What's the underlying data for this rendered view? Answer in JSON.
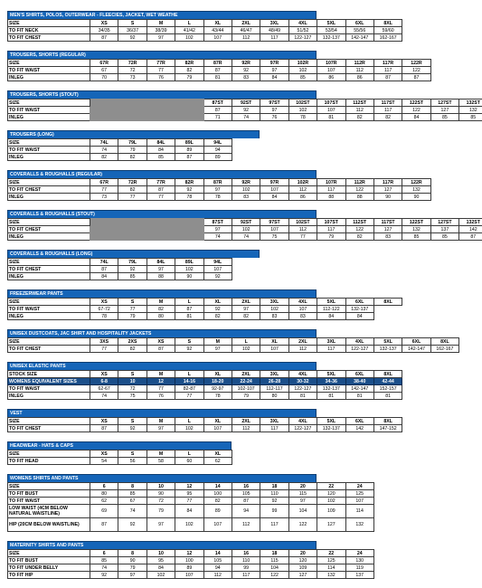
{
  "sections": [
    {
      "title": "MEN'S SHIRTS, POLOS, OUTERWEAR - FLEECIES, JACKET, WET WEATHE",
      "title_cols": 8,
      "grey_cols": 0,
      "rows": [
        {
          "label": "SIZE",
          "head": true,
          "cells": [
            "XS",
            "S",
            "M",
            "L",
            "XL",
            "2XL",
            "3XL",
            "4XL",
            "5XL",
            "6XL",
            "8XL"
          ]
        },
        {
          "label": "TO FIT NECK",
          "cells": [
            "34/35",
            "36/37",
            "38/39",
            "41/42",
            "43/44",
            "46/47",
            "48/49",
            "51/52",
            "53/54",
            "55/56",
            "59/60"
          ]
        },
        {
          "label": "TO FIT CHEST",
          "cells": [
            "87",
            "92",
            "97",
            "102",
            "107",
            "112",
            "117",
            "122-127",
            "132-137",
            "142-147",
            "162-167"
          ]
        }
      ]
    },
    {
      "title": "TROUSERS, SHORTS (REGULAR)",
      "title_cols": 8,
      "grey_cols": 0,
      "rows": [
        {
          "label": "SIZE",
          "head": true,
          "cells": [
            "67R",
            "72R",
            "77R",
            "82R",
            "87R",
            "92R",
            "97R",
            "102R",
            "107R",
            "112R",
            "117R",
            "122R"
          ]
        },
        {
          "label": "TO FIT WAIST",
          "cells": [
            "67",
            "72",
            "77",
            "82",
            "87",
            "92",
            "97",
            "102",
            "107",
            "112",
            "117",
            "122"
          ]
        },
        {
          "label": "INLEG",
          "cells": [
            "70",
            "73",
            "76",
            "79",
            "81",
            "83",
            "84",
            "85",
            "86",
            "86",
            "87",
            "87"
          ]
        }
      ]
    },
    {
      "title": "TROUSERS, SHORTS (STOUT)",
      "title_cols": 8,
      "grey_cols": 4,
      "rows": [
        {
          "label": "SIZE",
          "head": true,
          "cells": [
            "87ST",
            "92ST",
            "97ST",
            "102ST",
            "107ST",
            "112ST",
            "117ST",
            "122ST",
            "127ST",
            "132ST"
          ]
        },
        {
          "label": "TO FIT WAIST",
          "cells": [
            "87",
            "92",
            "97",
            "102",
            "107",
            "112",
            "117",
            "122",
            "127",
            "132"
          ]
        },
        {
          "label": "INLEG",
          "cells": [
            "71",
            "74",
            "76",
            "78",
            "81",
            "82",
            "82",
            "84",
            "85",
            "85"
          ]
        }
      ]
    },
    {
      "title": "TROUSERS (LONG)",
      "title_cols": 6,
      "grey_cols": 0,
      "rows": [
        {
          "label": "SIZE",
          "head": true,
          "cells": [
            "74L",
            "79L",
            "84L",
            "89L",
            "94L"
          ]
        },
        {
          "label": "TO FIT WAIST",
          "cells": [
            "74",
            "79",
            "84",
            "89",
            "94"
          ]
        },
        {
          "label": "INLEG",
          "cells": [
            "82",
            "82",
            "85",
            "87",
            "89"
          ]
        }
      ]
    },
    {
      "title": "COVERALLS & ROUGHALLS (REGULAR)",
      "title_cols": 8,
      "grey_cols": 0,
      "rows": [
        {
          "label": "SIZE",
          "head": true,
          "cells": [
            "67R",
            "72R",
            "77R",
            "82R",
            "87R",
            "92R",
            "97R",
            "102R",
            "107R",
            "112R",
            "117R",
            "122R"
          ]
        },
        {
          "label": "TO FIT CHEST",
          "cells": [
            "77",
            "82",
            "87",
            "92",
            "97",
            "102",
            "107",
            "112",
            "117",
            "122",
            "127",
            "132"
          ]
        },
        {
          "label": "INLEG",
          "cells": [
            "73",
            "77",
            "77",
            "78",
            "78",
            "83",
            "84",
            "86",
            "88",
            "88",
            "90",
            "90"
          ]
        }
      ]
    },
    {
      "title": "COVERALLS & ROUGHALLS (STOUT)",
      "title_cols": 8,
      "grey_cols": 4,
      "rows": [
        {
          "label": "SIZE",
          "head": true,
          "cells": [
            "87ST",
            "92ST",
            "97ST",
            "102ST",
            "107ST",
            "112ST",
            "117ST",
            "122ST",
            "127ST",
            "132ST"
          ]
        },
        {
          "label": "TO FIT CHEST",
          "cells": [
            "97",
            "102",
            "107",
            "112",
            "117",
            "122",
            "127",
            "132",
            "137",
            "142"
          ]
        },
        {
          "label": "INLEG",
          "cells": [
            "74",
            "74",
            "75",
            "77",
            "79",
            "82",
            "83",
            "85",
            "85",
            "87"
          ]
        }
      ]
    },
    {
      "title": "COVERALLS & ROUGHALLS (LONG)",
      "title_cols": 6,
      "grey_cols": 0,
      "rows": [
        {
          "label": "SIZE",
          "head": true,
          "cells": [
            "74L",
            "79L",
            "84L",
            "89L",
            "94L"
          ]
        },
        {
          "label": "TO FIT CHEST",
          "cells": [
            "87",
            "92",
            "97",
            "102",
            "107"
          ]
        },
        {
          "label": "INLEG",
          "cells": [
            "84",
            "85",
            "88",
            "90",
            "92"
          ]
        }
      ]
    },
    {
      "title": "FREEZERWEAR PANTS",
      "title_cols": 8,
      "grey_cols": 0,
      "rows": [
        {
          "label": "SIZE",
          "head": true,
          "cells": [
            "XS",
            "S",
            "M",
            "L",
            "XL",
            "2XL",
            "3XL",
            "4XL",
            "5XL",
            "6XL",
            "8XL"
          ]
        },
        {
          "label": "TO FIT WAIST",
          "cells": [
            "67-72",
            "77",
            "82",
            "87",
            "92",
            "97",
            "102",
            "107",
            "112-122",
            "132-137"
          ]
        },
        {
          "label": "INLEG",
          "cells": [
            "78",
            "79",
            "80",
            "81",
            "82",
            "82",
            "83",
            "83",
            "84",
            "84"
          ]
        }
      ]
    },
    {
      "title": "UNISEX DUSTCOATS, JAC SHIRT AND HOSPITALITY JACKETS",
      "title_cols": 8,
      "grey_cols": 0,
      "rows": [
        {
          "label": "SIZE",
          "head": true,
          "cells": [
            "3XS",
            "2XS",
            "XS",
            "S",
            "M",
            "L",
            "XL",
            "2XL",
            "3XL",
            "4XL",
            "5XL",
            "6XL",
            "8XL"
          ]
        },
        {
          "label": "TO FIT CHEST",
          "cells": [
            "77",
            "82",
            "87",
            "92",
            "97",
            "102",
            "107",
            "112",
            "117",
            "122-127",
            "132-137",
            "142-147",
            "162-167"
          ]
        }
      ]
    },
    {
      "title": "UNISEX ELASTIC PANTS",
      "title_cols": 8,
      "grey_cols": 0,
      "rows": [
        {
          "label": "STOCK SIZE",
          "head": true,
          "cells": [
            "XS",
            "S",
            "M",
            "L",
            "XL",
            "2XL",
            "3XL",
            "4XL",
            "5XL",
            "6XL",
            "8XL"
          ]
        },
        {
          "label": "WOMENS EQUIVALENT SIZES",
          "dark": true,
          "cells": [
            "6-8",
            "10",
            "12",
            "14-16",
            "18-20",
            "22-24",
            "26-28",
            "30-32",
            "34-36",
            "38-40",
            "42-44"
          ]
        },
        {
          "label": "TO FIT WAIST",
          "cells": [
            "62-67",
            "72",
            "77",
            "82-87",
            "92-97",
            "102-107",
            "112-117",
            "122-127",
            "132-137",
            "142-147",
            "152-157"
          ]
        },
        {
          "label": "INLEG",
          "cells": [
            "74",
            "75",
            "76",
            "77",
            "78",
            "79",
            "80",
            "81",
            "81",
            "81",
            "81"
          ]
        }
      ]
    },
    {
      "title": "VEST",
      "title_cols": 8,
      "grey_cols": 0,
      "rows": [
        {
          "label": "SIZE",
          "head": true,
          "cells": [
            "XS",
            "S",
            "M",
            "L",
            "XL",
            "2XL",
            "3XL",
            "4XL",
            "5XL",
            "6XL",
            "8XL"
          ]
        },
        {
          "label": "TO FIT CHEST",
          "cells": [
            "87",
            "92",
            "97",
            "102",
            "107",
            "112",
            "117",
            "122-127",
            "132-137",
            "142",
            "147-152"
          ]
        }
      ]
    },
    {
      "title": "HEADWEAR - HATS & CAPS",
      "title_cols": 5,
      "grey_cols": 0,
      "rows": [
        {
          "label": "SIZE",
          "head": true,
          "cells": [
            "XS",
            "S",
            "M",
            "L",
            "XL"
          ]
        },
        {
          "label": "TO FIT HEAD",
          "cells": [
            "54",
            "56",
            "58",
            "60",
            "62"
          ]
        }
      ]
    },
    {
      "title": "WOMENS SHIRTS AND PANTS",
      "title_cols": 8,
      "grey_cols": 0,
      "rows": [
        {
          "label": "SIZE",
          "head": true,
          "cells": [
            "6",
            "8",
            "10",
            "12",
            "14",
            "16",
            "18",
            "20",
            "22",
            "24"
          ]
        },
        {
          "label": "TO FIT BUST",
          "cells": [
            "80",
            "85",
            "90",
            "95",
            "100",
            "105",
            "110",
            "115",
            "120",
            "125"
          ]
        },
        {
          "label": "TO FIT WAIST",
          "cells": [
            "62",
            "67",
            "72",
            "77",
            "82",
            "87",
            "92",
            "97",
            "102",
            "107"
          ]
        },
        {
          "label": "LOW WAIST (4CM BELOW NATURAL WAISTLINE)",
          "tall": true,
          "cells": [
            "69",
            "74",
            "79",
            "84",
            "89",
            "94",
            "99",
            "104",
            "109",
            "114"
          ]
        },
        {
          "label": "HIP (20CM BELOW WAISTLINE)",
          "tall": true,
          "cells": [
            "87",
            "92",
            "97",
            "102",
            "107",
            "112",
            "117",
            "122",
            "127",
            "132"
          ]
        }
      ]
    },
    {
      "title": "MATERNITY SHIRTS AND PANTS",
      "title_cols": 8,
      "grey_cols": 0,
      "rows": [
        {
          "label": "SIZE",
          "head": true,
          "cells": [
            "6",
            "8",
            "10",
            "12",
            "14",
            "16",
            "18",
            "20",
            "22",
            "24"
          ]
        },
        {
          "label": "TO FIT BUST",
          "cells": [
            "85",
            "90",
            "95",
            "100",
            "105",
            "110",
            "115",
            "120",
            "125",
            "130"
          ]
        },
        {
          "label": "TO FIT UNDER BELLY",
          "cells": [
            "74",
            "79",
            "84",
            "89",
            "94",
            "99",
            "104",
            "109",
            "114",
            "119"
          ]
        },
        {
          "label": "TO FIT HIP",
          "cells": [
            "92",
            "97",
            "102",
            "107",
            "112",
            "117",
            "122",
            "127",
            "132",
            "137"
          ]
        }
      ]
    }
  ]
}
